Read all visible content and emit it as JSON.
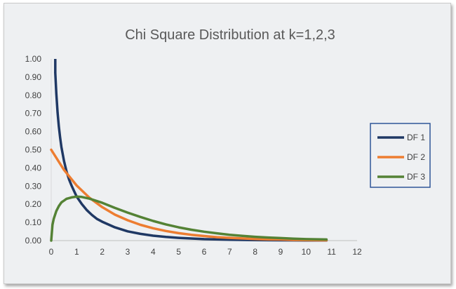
{
  "chart_data": {
    "type": "line",
    "title": "Chi Square Distribution at k=1,2,3",
    "xlabel": "",
    "ylabel": "",
    "xlim": [
      0,
      12
    ],
    "ylim": [
      0,
      1.0
    ],
    "x_ticks": [
      "0",
      "1",
      "2",
      "3",
      "4",
      "5",
      "6",
      "7",
      "8",
      "9",
      "10",
      "11",
      "12"
    ],
    "y_ticks": [
      "0.00",
      "0.10",
      "0.20",
      "0.30",
      "0.40",
      "0.50",
      "0.60",
      "0.70",
      "0.80",
      "0.90",
      "1.00"
    ],
    "grid": false,
    "legend_position": "right",
    "x_range": [
      0,
      10.8
    ],
    "series": [
      {
        "name": "DF 1",
        "color": "#1f3864",
        "x": [
          0.16,
          0.2,
          0.25,
          0.3,
          0.35,
          0.4,
          0.5,
          0.6,
          0.7,
          0.8,
          0.9,
          1.0,
          1.2,
          1.4,
          1.6,
          1.8,
          2.0,
          2.5,
          3.0,
          3.5,
          4.0,
          4.5,
          5.0,
          6.0,
          7.0,
          8.0,
          9.0,
          10.0,
          10.8
        ],
        "y": [
          0.923,
          0.808,
          0.704,
          0.627,
          0.567,
          0.516,
          0.439,
          0.381,
          0.337,
          0.302,
          0.272,
          0.242,
          0.201,
          0.167,
          0.141,
          0.119,
          0.104,
          0.073,
          0.051,
          0.037,
          0.027,
          0.02,
          0.015,
          0.008,
          0.005,
          0.003,
          0.002,
          0.001,
          0.001
        ]
      },
      {
        "name": "DF 2",
        "color": "#ed7d31",
        "x": [
          0,
          0.5,
          1,
          1.5,
          2,
          2.5,
          3,
          3.5,
          4,
          4.5,
          5,
          5.5,
          6,
          6.5,
          7,
          7.5,
          8,
          8.5,
          9,
          9.5,
          10,
          10.8
        ],
        "y": [
          0.5,
          0.389,
          0.303,
          0.236,
          0.184,
          0.143,
          0.112,
          0.087,
          0.068,
          0.053,
          0.041,
          0.032,
          0.025,
          0.019,
          0.015,
          0.012,
          0.009,
          0.007,
          0.006,
          0.004,
          0.003,
          0.002
        ]
      },
      {
        "name": "DF 3",
        "color": "#548235",
        "x": [
          0,
          0.05,
          0.1,
          0.2,
          0.3,
          0.4,
          0.5,
          0.6,
          0.8,
          1.0,
          1.2,
          1.5,
          2.0,
          2.5,
          3.0,
          3.5,
          4.0,
          4.5,
          5.0,
          5.5,
          6.0,
          6.5,
          7.0,
          7.5,
          8.0,
          8.5,
          9.0,
          9.5,
          10.0,
          10.8
        ],
        "y": [
          0,
          0.087,
          0.12,
          0.163,
          0.19,
          0.21,
          0.22,
          0.23,
          0.238,
          0.242,
          0.24,
          0.231,
          0.208,
          0.18,
          0.154,
          0.13,
          0.108,
          0.089,
          0.073,
          0.06,
          0.049,
          0.04,
          0.032,
          0.026,
          0.021,
          0.017,
          0.014,
          0.011,
          0.008,
          0.006
        ]
      }
    ]
  }
}
